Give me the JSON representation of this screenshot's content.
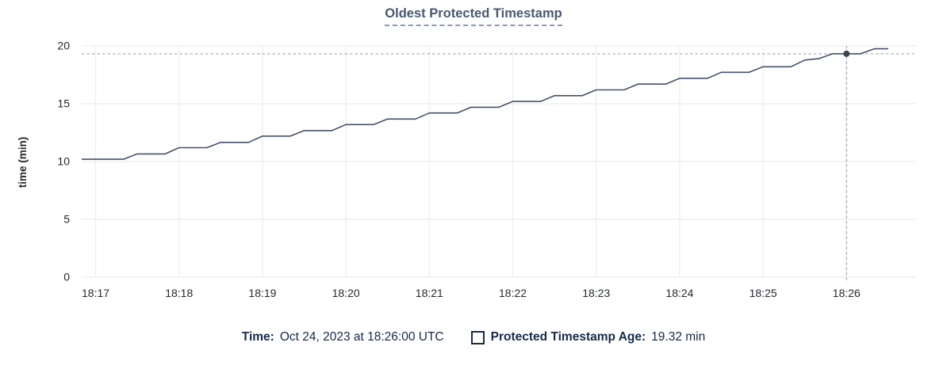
{
  "title": "Oldest Protected Timestamp",
  "colors": {
    "title": "#475872",
    "title-underline": "#8699b8",
    "line": "#44526b",
    "dot": "#394455",
    "crosshair": "#9aabbd",
    "grid": "#efefef",
    "axis-text": "#25292e",
    "legend-text": "#152a4a"
  },
  "chart_data": {
    "type": "line",
    "title": "Oldest Protected Timestamp",
    "xlabel": "",
    "ylabel": "time (min)",
    "ylim": [
      0,
      20
    ],
    "grid": true,
    "y_ticks": [
      "0",
      "5",
      "10",
      "15",
      "20"
    ],
    "x_ticks": [
      "18:17",
      "18:18",
      "18:19",
      "18:20",
      "18:21",
      "18:22",
      "18:23",
      "18:24",
      "18:25",
      "18:26"
    ],
    "x_domain": [
      "18:16:50",
      "18:26:50"
    ],
    "hover_point": {
      "x": "18:26:00",
      "y": 19.32
    },
    "series": [
      {
        "name": "Protected Timestamp Age",
        "unit": "min",
        "points": [
          [
            "18:16:50",
            10.2
          ],
          [
            "18:17:00",
            10.2
          ],
          [
            "18:17:10",
            10.2
          ],
          [
            "18:17:20",
            10.2
          ],
          [
            "18:17:30",
            10.66
          ],
          [
            "18:17:40",
            10.66
          ],
          [
            "18:17:50",
            10.66
          ],
          [
            "18:18:00",
            11.2
          ],
          [
            "18:18:10",
            11.2
          ],
          [
            "18:18:20",
            11.2
          ],
          [
            "18:18:30",
            11.66
          ],
          [
            "18:18:40",
            11.66
          ],
          [
            "18:18:50",
            11.66
          ],
          [
            "18:19:00",
            12.2
          ],
          [
            "18:19:10",
            12.2
          ],
          [
            "18:19:20",
            12.2
          ],
          [
            "18:19:30",
            12.68
          ],
          [
            "18:19:40",
            12.68
          ],
          [
            "18:19:50",
            12.68
          ],
          [
            "18:20:00",
            13.2
          ],
          [
            "18:20:10",
            13.2
          ],
          [
            "18:20:20",
            13.2
          ],
          [
            "18:20:30",
            13.68
          ],
          [
            "18:20:40",
            13.68
          ],
          [
            "18:20:50",
            13.68
          ],
          [
            "18:21:00",
            14.2
          ],
          [
            "18:21:10",
            14.2
          ],
          [
            "18:21:20",
            14.2
          ],
          [
            "18:21:30",
            14.7
          ],
          [
            "18:21:40",
            14.7
          ],
          [
            "18:21:50",
            14.7
          ],
          [
            "18:22:00",
            15.2
          ],
          [
            "18:22:10",
            15.2
          ],
          [
            "18:22:20",
            15.2
          ],
          [
            "18:22:30",
            15.7
          ],
          [
            "18:22:40",
            15.7
          ],
          [
            "18:22:50",
            15.7
          ],
          [
            "18:23:00",
            16.2
          ],
          [
            "18:23:10",
            16.2
          ],
          [
            "18:23:20",
            16.2
          ],
          [
            "18:23:30",
            16.7
          ],
          [
            "18:23:40",
            16.7
          ],
          [
            "18:23:50",
            16.7
          ],
          [
            "18:24:00",
            17.2
          ],
          [
            "18:24:10",
            17.2
          ],
          [
            "18:24:20",
            17.2
          ],
          [
            "18:24:30",
            17.72
          ],
          [
            "18:24:40",
            17.72
          ],
          [
            "18:24:50",
            17.72
          ],
          [
            "18:25:00",
            18.2
          ],
          [
            "18:25:10",
            18.2
          ],
          [
            "18:25:20",
            18.2
          ],
          [
            "18:25:30",
            18.78
          ],
          [
            "18:25:40",
            18.9
          ],
          [
            "18:25:50",
            19.32
          ],
          [
            "18:26:00",
            19.32
          ],
          [
            "18:26:10",
            19.32
          ],
          [
            "18:26:20",
            19.75
          ],
          [
            "18:26:30",
            19.75
          ]
        ]
      }
    ]
  },
  "legend": {
    "time_label": "Time:",
    "time_value": "Oct 24, 2023 at 18:26:00 UTC",
    "series_label": "Protected Timestamp Age:",
    "series_value": "19.32 min"
  }
}
